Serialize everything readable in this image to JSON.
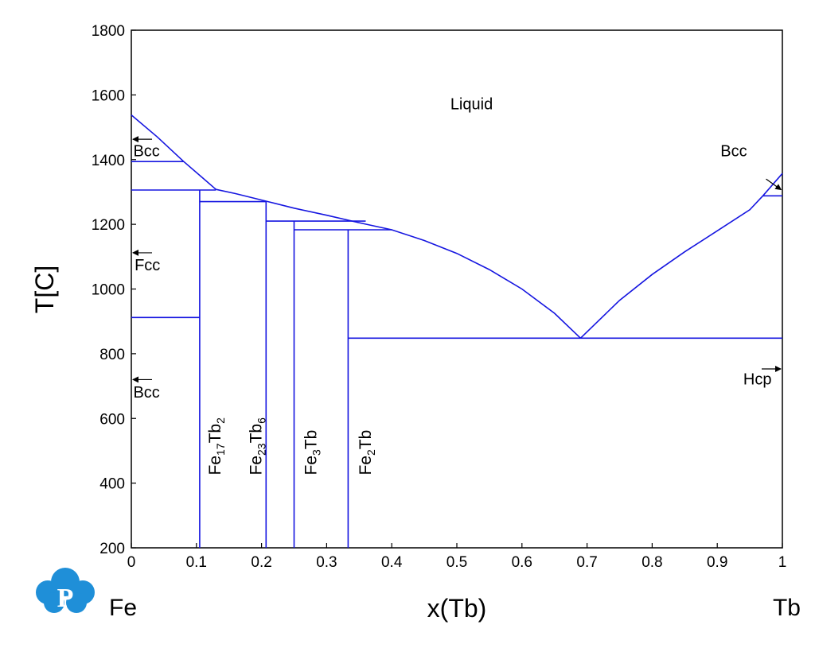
{
  "colors": {
    "phase_line": "#1515e0",
    "axis": "#000000",
    "logo": "#1f8fd8"
  },
  "logo": {
    "letter": "P"
  },
  "chart_data": {
    "type": "line",
    "title": "",
    "xlabel": "x(Tb)",
    "ylabel": "T[C]",
    "xlim": [
      0,
      1
    ],
    "ylim": [
      200,
      1800
    ],
    "x_ticks": [
      0,
      0.1,
      0.2,
      0.3,
      0.4,
      0.5,
      0.6,
      0.7,
      0.8,
      0.9,
      1
    ],
    "x_tick_labels": [
      "0",
      "0.1",
      "0.2",
      "0.3",
      "0.4",
      "0.5",
      "0.6",
      "0.7",
      "0.8",
      "0.9",
      "1"
    ],
    "y_ticks": [
      200,
      400,
      600,
      800,
      1000,
      1200,
      1400,
      1600,
      1800
    ],
    "y_tick_labels": [
      "200",
      "400",
      "600",
      "800",
      "1000",
      "1200",
      "1400",
      "1600",
      "1800"
    ],
    "left_element": "Fe",
    "right_element": "Tb",
    "series": [
      {
        "id": "liquidus-fe-bcc",
        "points": [
          [
            0,
            1538
          ],
          [
            0.04,
            1470
          ],
          [
            0.08,
            1395
          ],
          [
            0.13,
            1308
          ]
        ]
      },
      {
        "id": "liquidus-main",
        "points": [
          [
            0.13,
            1308
          ],
          [
            0.16,
            1295
          ],
          [
            0.21,
            1270
          ],
          [
            0.25,
            1250
          ],
          [
            0.3,
            1228
          ],
          [
            0.35,
            1205
          ],
          [
            0.4,
            1183
          ],
          [
            0.45,
            1150
          ],
          [
            0.5,
            1110
          ],
          [
            0.55,
            1060
          ],
          [
            0.6,
            1000
          ],
          [
            0.65,
            925
          ],
          [
            0.69,
            848
          ]
        ]
      },
      {
        "id": "liquidus-tb",
        "points": [
          [
            0.69,
            848
          ],
          [
            0.75,
            965
          ],
          [
            0.8,
            1045
          ],
          [
            0.85,
            1115
          ],
          [
            0.9,
            1180
          ],
          [
            0.95,
            1245
          ],
          [
            0.97,
            1288
          ],
          [
            1.0,
            1357
          ]
        ]
      },
      {
        "id": "bcc-fcc-fe",
        "points": [
          [
            0,
            1394
          ],
          [
            0.08,
            1394
          ]
        ]
      },
      {
        "id": "peritectic-fe17tb2",
        "points": [
          [
            0,
            1306
          ],
          [
            0.13,
            1306
          ]
        ]
      },
      {
        "id": "eutectoid-bcc-fcc",
        "points": [
          [
            0,
            912
          ],
          [
            0.105,
            912
          ]
        ]
      },
      {
        "id": "peritectic-fe23tb6",
        "points": [
          [
            0.105,
            1270
          ],
          [
            0.207,
            1270
          ]
        ]
      },
      {
        "id": "peritectic-fe3tb",
        "points": [
          [
            0.207,
            1210
          ],
          [
            0.36,
            1210
          ]
        ]
      },
      {
        "id": "peritectic-fe2tb",
        "points": [
          [
            0.25,
            1183
          ],
          [
            0.4,
            1183
          ]
        ]
      },
      {
        "id": "eutectic",
        "points": [
          [
            0.333,
            848
          ],
          [
            1.0,
            848
          ]
        ]
      },
      {
        "id": "bcc-hcp-tb",
        "points": [
          [
            0.97,
            1288
          ],
          [
            1.0,
            1288
          ]
        ]
      },
      {
        "id": "fe17tb2-line",
        "points": [
          [
            0.105,
            200
          ],
          [
            0.105,
            1306
          ]
        ]
      },
      {
        "id": "fe23tb6-line",
        "points": [
          [
            0.207,
            200
          ],
          [
            0.207,
            1270
          ]
        ]
      },
      {
        "id": "fe3tb-line",
        "points": [
          [
            0.25,
            200
          ],
          [
            0.25,
            1210
          ]
        ]
      },
      {
        "id": "fe2tb-line",
        "points": [
          [
            0.333,
            200
          ],
          [
            0.333,
            1183
          ]
        ]
      }
    ],
    "annotations": [
      {
        "id": "liquid",
        "text": "Liquid",
        "x": 0.49,
        "y": 1555
      },
      {
        "id": "bcc-fe-high",
        "text": "Bcc",
        "x": 0.003,
        "y": 1410,
        "arrow_to_left_axis_y": 1463
      },
      {
        "id": "fcc-fe",
        "text": "Fcc",
        "x": 0.005,
        "y": 1058,
        "arrow_to_left_axis_y": 1112
      },
      {
        "id": "bcc-fe-low",
        "text": "Bcc",
        "x": 0.003,
        "y": 665,
        "arrow_to_left_axis_y": 720
      },
      {
        "id": "bcc-tb",
        "text": "Bcc",
        "x": 0.905,
        "y": 1410
      },
      {
        "id": "hcp-tb",
        "text": "Hcp",
        "x": 0.94,
        "y": 705,
        "arrow_to_right_axis_y": 753
      }
    ],
    "phases": [
      {
        "id": "fe17tb2",
        "base1": "Fe",
        "sub1": "17",
        "base2": "Tb",
        "sub2": "2",
        "x": 0.137,
        "y": 425
      },
      {
        "id": "fe23tb6",
        "base1": "Fe",
        "sub1": "23",
        "base2": "Tb",
        "sub2": "6",
        "x": 0.2,
        "y": 425
      },
      {
        "id": "fe3tb",
        "base1": "Fe",
        "sub1": "3",
        "base2": "Tb",
        "sub2": "",
        "x": 0.284,
        "y": 425
      },
      {
        "id": "fe2tb",
        "base1": "Fe",
        "sub1": "2",
        "base2": "Tb",
        "sub2": "",
        "x": 0.368,
        "y": 425
      }
    ]
  }
}
